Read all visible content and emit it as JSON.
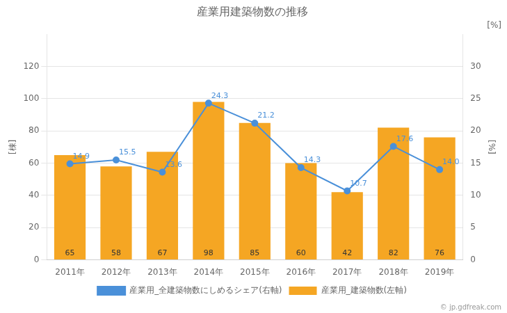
{
  "chart_data": {
    "type": "bar",
    "title": "産業用建築物数の推移",
    "categories": [
      "2011年",
      "2012年",
      "2013年",
      "2014年",
      "2015年",
      "2016年",
      "2017年",
      "2018年",
      "2019年"
    ],
    "series": [
      {
        "name": "産業用_建築物数(左軸)",
        "type": "bar",
        "color": "#F5A623",
        "axis": "y",
        "values": [
          65,
          58,
          67,
          98,
          85,
          60,
          42,
          82,
          76
        ]
      },
      {
        "name": "産業用_全建築物数にしめるシェア(右軸)",
        "type": "line",
        "color": "#4A90D9",
        "marker": "circle",
        "axis": "y2",
        "values": [
          14.9,
          15.5,
          13.6,
          24.3,
          21.2,
          14.3,
          10.7,
          17.6,
          14.0
        ],
        "value_labels": [
          "14.9",
          "15.5",
          "13.6",
          "24.3",
          "21.2",
          "14.3",
          "10.7",
          "17.6",
          "14.0"
        ]
      }
    ],
    "ylabel": "[棟]",
    "y2label": "[%]",
    "ylim": [
      0,
      140
    ],
    "yticks": [
      0,
      20,
      40,
      60,
      80,
      100,
      120
    ],
    "y2lim": [
      0,
      35.0
    ],
    "y2ticks": [
      0,
      5,
      10,
      15,
      20,
      25,
      30
    ],
    "grid": true,
    "legend": "bottom",
    "data_labels": true,
    "annotations": [
      "[%]",
      "© jp.gdfreak.com"
    ]
  }
}
